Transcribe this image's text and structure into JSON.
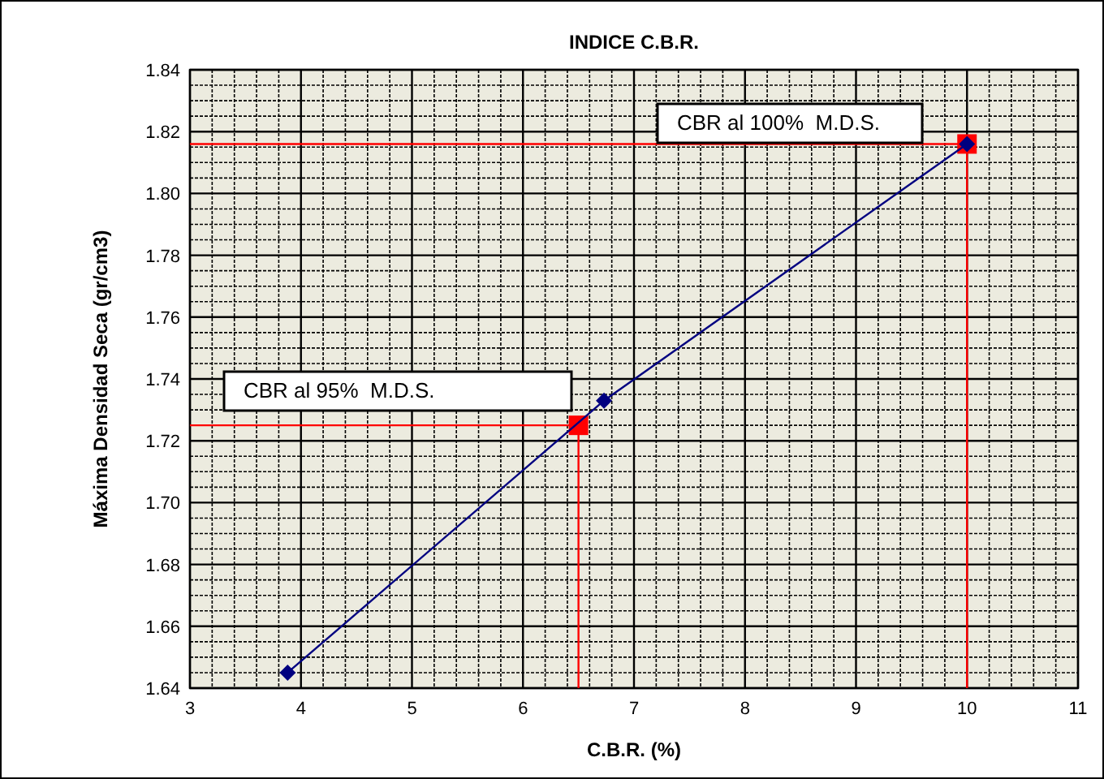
{
  "chart_data": {
    "type": "line",
    "title": "INDICE C.B.R.",
    "xlabel": "C.B.R. (%)",
    "ylabel": "Máxima Densidad Seca (gr/cm3)",
    "xlim": [
      3,
      11
    ],
    "ylim": [
      1.64,
      1.84
    ],
    "xticks": [
      3,
      {
        "value": 3.2,
        "label": null
      },
      {
        "value": 3.4,
        "label": null
      },
      {
        "value": 3.6,
        "label": null
      },
      {
        "value": 3.8,
        "label": null
      },
      4,
      {
        "value": 4.2,
        "label": null
      },
      {
        "value": 4.4,
        "label": null
      },
      {
        "value": 4.6,
        "label": null
      },
      {
        "value": 4.8,
        "label": null
      },
      5,
      {
        "value": 5.2,
        "label": null
      },
      {
        "value": 5.4,
        "label": null
      },
      {
        "value": 5.6,
        "label": null
      },
      {
        "value": 5.8,
        "label": null
      },
      6,
      {
        "value": 6.2,
        "label": null
      },
      {
        "value": 6.4,
        "label": null
      },
      {
        "value": 6.6,
        "label": null
      },
      {
        "value": 6.8,
        "label": null
      },
      7,
      {
        "value": 7.2,
        "label": null
      },
      {
        "value": 7.4,
        "label": null
      },
      {
        "value": 7.6,
        "label": null
      },
      {
        "value": 7.8,
        "label": null
      },
      8,
      {
        "value": 8.2,
        "label": null
      },
      {
        "value": 8.4,
        "label": null
      },
      {
        "value": 8.6,
        "label": null
      },
      {
        "value": 8.8,
        "label": null
      },
      9,
      {
        "value": 9.2,
        "label": null
      },
      {
        "value": 9.4,
        "label": null
      },
      {
        "value": 9.6,
        "label": null
      },
      {
        "value": 9.8,
        "label": null
      },
      10,
      {
        "value": 10.2,
        "label": null
      },
      {
        "value": 10.4,
        "label": null
      },
      {
        "value": 10.6,
        "label": null
      },
      {
        "value": 10.8,
        "label": null
      },
      11
    ],
    "yticks": [
      1.64,
      {
        "value": 1.645,
        "label": null
      },
      {
        "value": 1.65,
        "label": null
      },
      {
        "value": 1.655,
        "label": null
      },
      1.66,
      {
        "value": 1.665,
        "label": null
      },
      {
        "value": 1.67,
        "label": null
      },
      {
        "value": 1.675,
        "label": null
      },
      1.68,
      {
        "value": 1.685,
        "label": null
      },
      {
        "value": 1.69,
        "label": null
      },
      {
        "value": 1.695,
        "label": null
      },
      {
        "value": 1.7,
        "label": "1.70"
      },
      {
        "value": 1.705,
        "label": null
      },
      {
        "value": 1.71,
        "label": null
      },
      {
        "value": 1.715,
        "label": null
      },
      1.72,
      {
        "value": 1.725,
        "label": null
      },
      {
        "value": 1.73,
        "label": null
      },
      {
        "value": 1.735,
        "label": null
      },
      1.74,
      {
        "value": 1.745,
        "label": null
      },
      {
        "value": 1.75,
        "label": null
      },
      {
        "value": 1.755,
        "label": null
      },
      1.76,
      {
        "value": 1.765,
        "label": null
      },
      {
        "value": 1.77,
        "label": null
      },
      {
        "value": 1.775,
        "label": null
      },
      1.78,
      {
        "value": 1.785,
        "label": null
      },
      {
        "value": 1.79,
        "label": null
      },
      {
        "value": 1.795,
        "label": null
      },
      {
        "value": 1.8,
        "label": "1.80"
      },
      {
        "value": 1.805,
        "label": null
      },
      {
        "value": 1.81,
        "label": null
      },
      {
        "value": 1.815,
        "label": null
      },
      1.82,
      {
        "value": 1.825,
        "label": null
      },
      {
        "value": 1.83,
        "label": null
      },
      {
        "value": 1.835,
        "label": null
      },
      1.84
    ],
    "grid": true,
    "series": [
      {
        "color": "#ff0000",
        "x": [
          3,
          6.5,
          6.5
        ],
        "values": [
          1.725,
          1.725,
          1.64
        ],
        "marker": "none"
      },
      {
        "color": "#ff0000",
        "x": [
          3,
          10,
          10
        ],
        "values": [
          1.816,
          1.816,
          1.64
        ],
        "marker": "none"
      },
      {
        "type": "scatter",
        "color": "#ff0000",
        "x": [
          6.5,
          10
        ],
        "values": [
          1.725,
          1.816
        ],
        "marker": "square"
      },
      {
        "color": "#000080",
        "x": [
          3.88,
          6.73,
          10
        ],
        "values": [
          1.645,
          1.733,
          1.816
        ],
        "marker": "diamond"
      }
    ],
    "annotations": [
      "CBR al 95%  M.D.S.",
      "CBR al 100%  M.D.S."
    ]
  }
}
